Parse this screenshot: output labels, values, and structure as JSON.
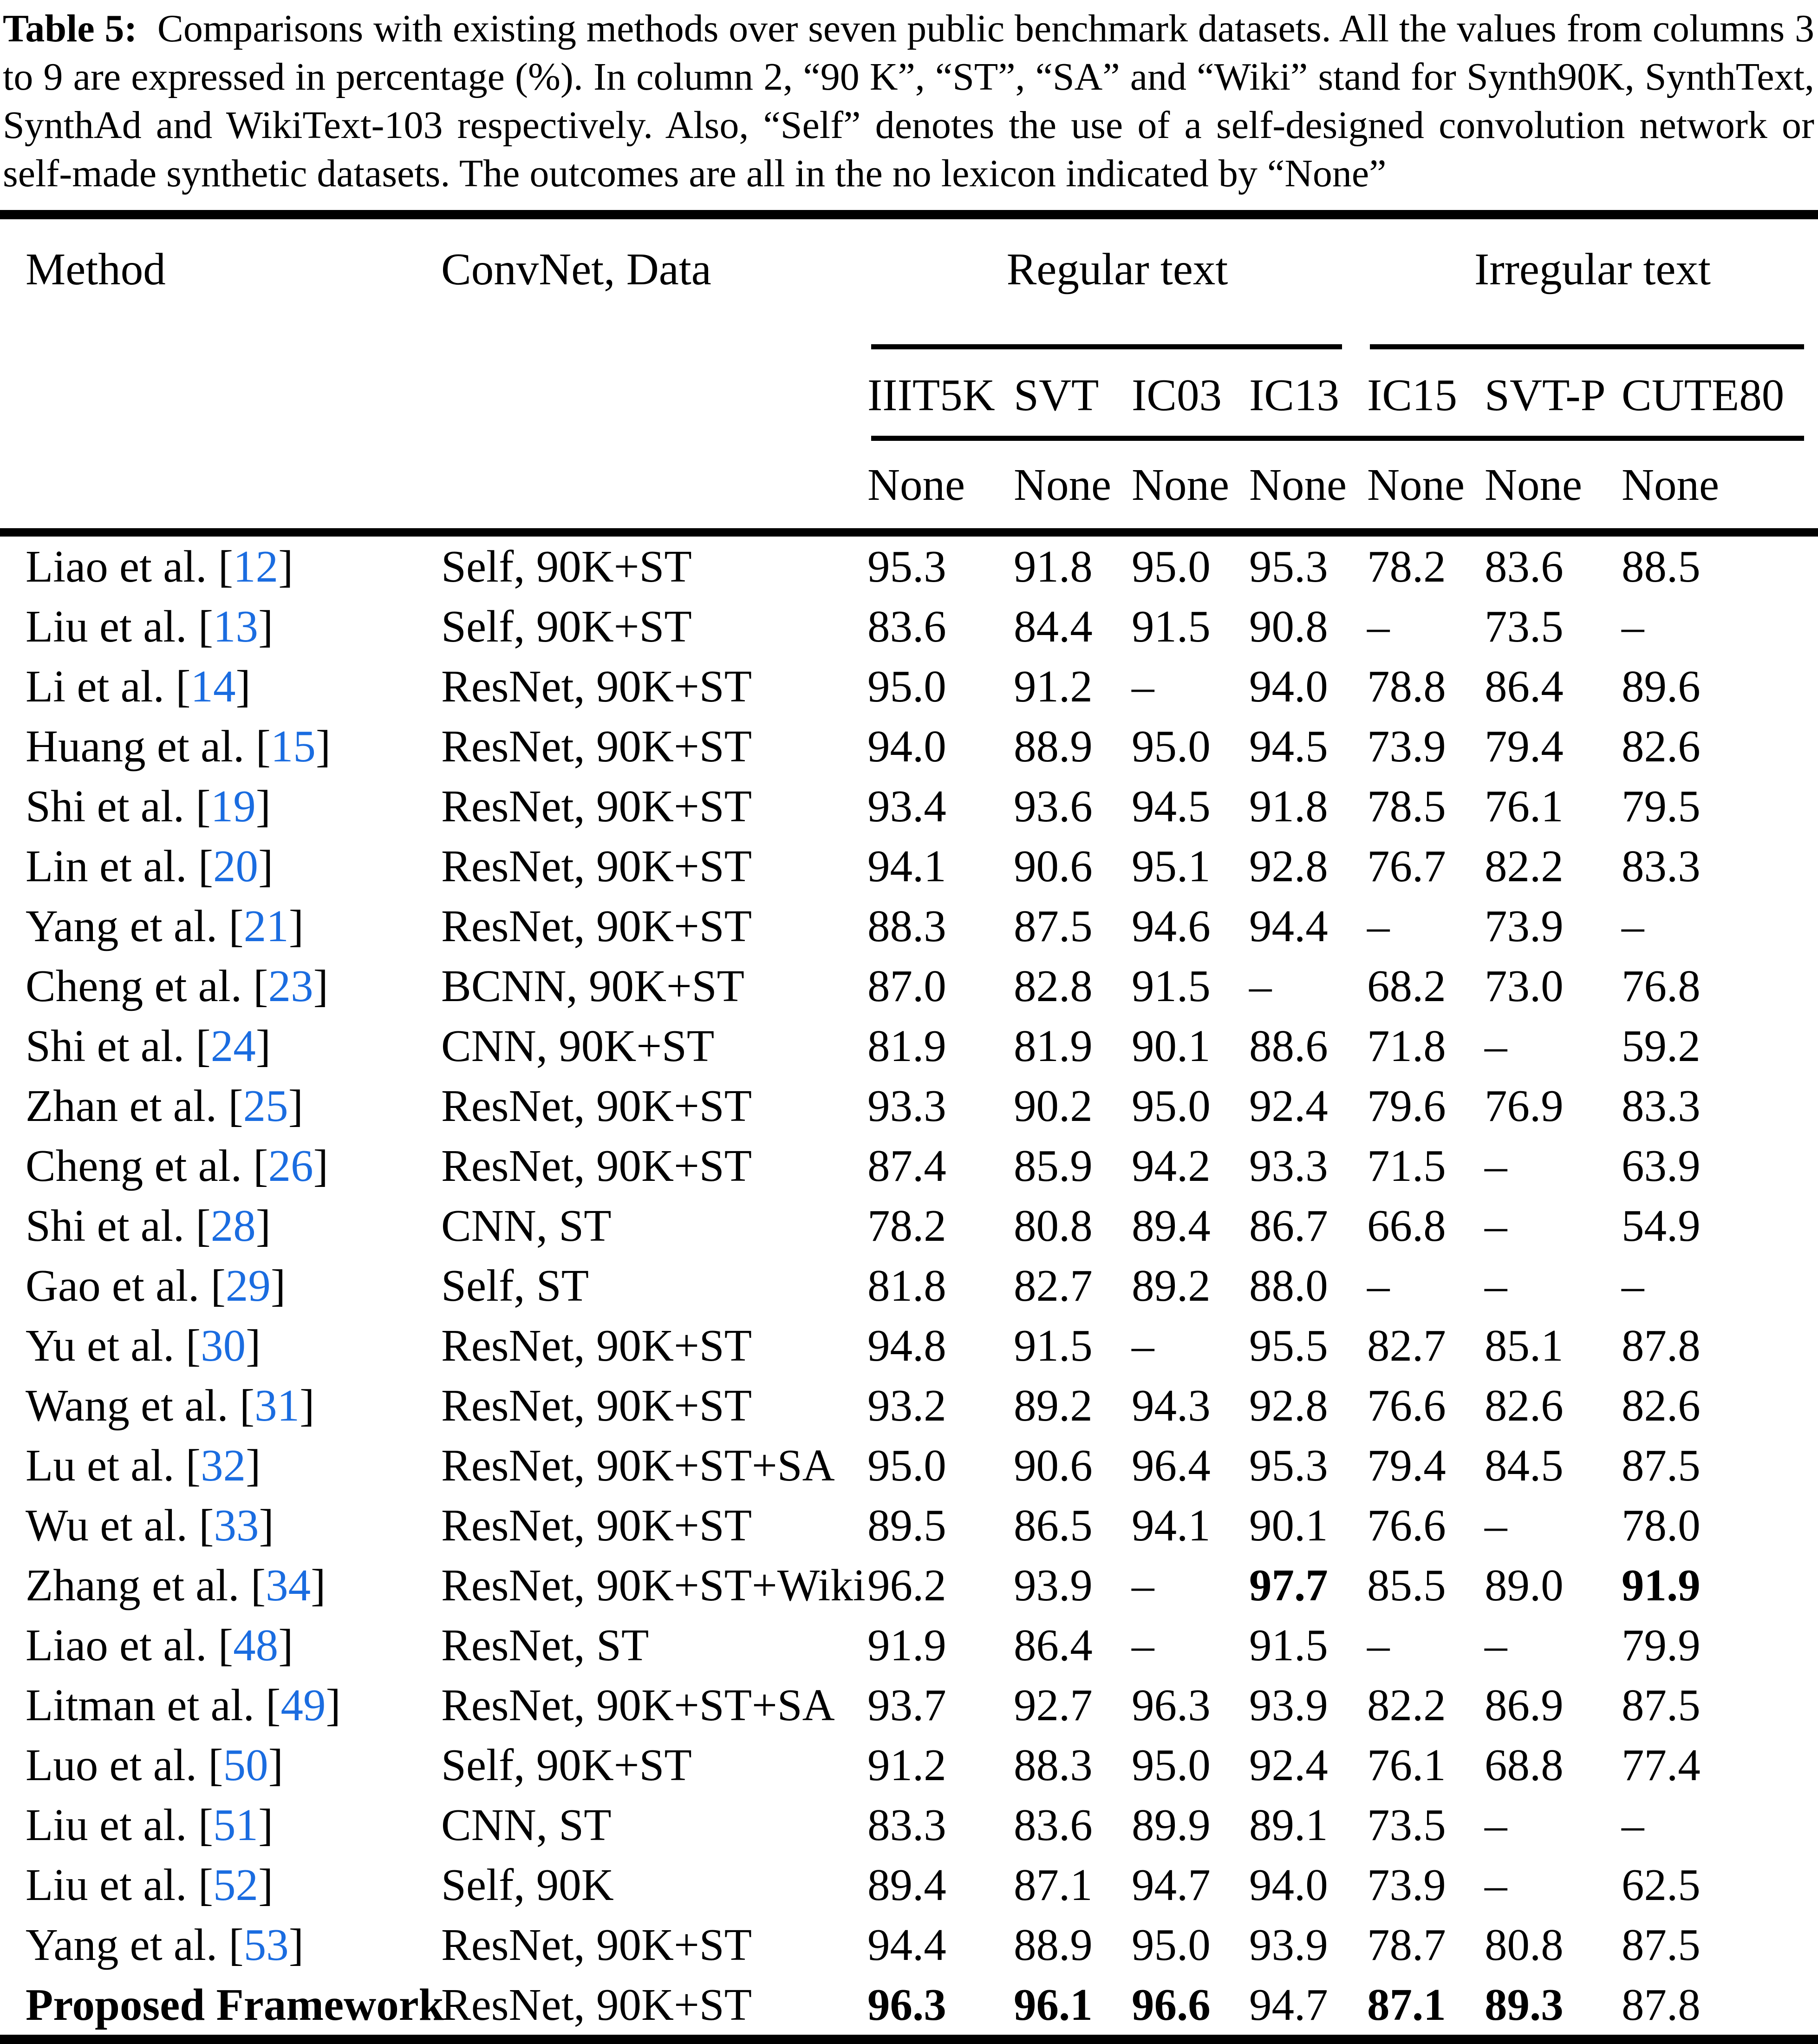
{
  "caption": {
    "label": "Table 5:",
    "text": "Comparisons with existing methods over seven public benchmark datasets. All the values from columns 3 to 9 are expressed in percentage (%). In column 2, “90 K”, “ST”, “SA” and “Wiki” stand for Synth90K, SynthText, SynthAd and WikiText-103 respectively. Also, “Self” denotes the use of a self-designed convolution network or self-made synthetic datasets. The outcomes are all in the no lexicon indicated by “None”"
  },
  "header": {
    "col1": "Method",
    "col2": "ConvNet, Data",
    "groups": [
      {
        "label": "Regular text"
      },
      {
        "label": "Irregular text"
      }
    ],
    "datasets": [
      "IIIT5K",
      "SVT",
      "IC03",
      "IC13",
      "IC15",
      "SVT-P",
      "CUTE80"
    ],
    "lexicon": [
      "None",
      "None",
      "None",
      "None",
      "None",
      "None",
      "None"
    ]
  },
  "rows": [
    {
      "method": "Liao et al.",
      "cite": "12",
      "convnet": "Self, 90K+ST",
      "values": [
        "95.3",
        "91.8",
        "95.0",
        "95.3",
        "78.2",
        "83.6",
        "88.5"
      ],
      "bold": []
    },
    {
      "method": "Liu et al.",
      "cite": "13",
      "convnet": "Self, 90K+ST",
      "values": [
        "83.6",
        "84.4",
        "91.5",
        "90.8",
        "–",
        "73.5",
        "–"
      ],
      "bold": []
    },
    {
      "method": "Li et al.",
      "cite": "14",
      "convnet": "ResNet, 90K+ST",
      "values": [
        "95.0",
        "91.2",
        "–",
        "94.0",
        "78.8",
        "86.4",
        "89.6"
      ],
      "bold": []
    },
    {
      "method": "Huang et al.",
      "cite": "15",
      "convnet": "ResNet, 90K+ST",
      "values": [
        "94.0",
        "88.9",
        "95.0",
        "94.5",
        "73.9",
        "79.4",
        "82.6"
      ],
      "bold": []
    },
    {
      "method": "Shi et al.",
      "cite": "19",
      "convnet": "ResNet, 90K+ST",
      "values": [
        "93.4",
        "93.6",
        "94.5",
        "91.8",
        "78.5",
        "76.1",
        "79.5"
      ],
      "bold": []
    },
    {
      "method": "Lin et al.",
      "cite": "20",
      "convnet": "ResNet, 90K+ST",
      "values": [
        "94.1",
        "90.6",
        "95.1",
        "92.8",
        "76.7",
        "82.2",
        "83.3"
      ],
      "bold": []
    },
    {
      "method": "Yang et al.",
      "cite": "21",
      "convnet": "ResNet, 90K+ST",
      "values": [
        "88.3",
        "87.5",
        "94.6",
        "94.4",
        "–",
        "73.9",
        "–"
      ],
      "bold": []
    },
    {
      "method": "Cheng et al.",
      "cite": "23",
      "convnet": "BCNN, 90K+ST",
      "values": [
        "87.0",
        "82.8",
        "91.5",
        "–",
        "68.2",
        "73.0",
        "76.8"
      ],
      "bold": []
    },
    {
      "method": "Shi et al.",
      "cite": "24",
      "convnet": "CNN, 90K+ST",
      "values": [
        "81.9",
        "81.9",
        "90.1",
        "88.6",
        "71.8",
        "–",
        "59.2"
      ],
      "bold": []
    },
    {
      "method": "Zhan et al.",
      "cite": "25",
      "convnet": "ResNet, 90K+ST",
      "values": [
        "93.3",
        "90.2",
        "95.0",
        "92.4",
        "79.6",
        "76.9",
        "83.3"
      ],
      "bold": []
    },
    {
      "method": "Cheng et al.",
      "cite": "26",
      "convnet": "ResNet, 90K+ST",
      "values": [
        "87.4",
        "85.9",
        "94.2",
        "93.3",
        "71.5",
        "–",
        "63.9"
      ],
      "bold": []
    },
    {
      "method": "Shi et al.",
      "cite": "28",
      "convnet": "CNN, ST",
      "values": [
        "78.2",
        "80.8",
        "89.4",
        "86.7",
        "66.8",
        "–",
        "54.9"
      ],
      "bold": []
    },
    {
      "method": "Gao et al.",
      "cite": "29",
      "convnet": "Self, ST",
      "values": [
        "81.8",
        "82.7",
        "89.2",
        "88.0",
        "–",
        "–",
        "–"
      ],
      "bold": []
    },
    {
      "method": "Yu et al.",
      "cite": "30",
      "convnet": "ResNet, 90K+ST",
      "values": [
        "94.8",
        "91.5",
        "–",
        "95.5",
        "82.7",
        "85.1",
        "87.8"
      ],
      "bold": []
    },
    {
      "method": "Wang et al.",
      "cite": "31",
      "convnet": "ResNet, 90K+ST",
      "values": [
        "93.2",
        "89.2",
        "94.3",
        "92.8",
        "76.6",
        "82.6",
        "82.6"
      ],
      "bold": []
    },
    {
      "method": "Lu et al.",
      "cite": "32",
      "convnet": "ResNet, 90K+ST+SA",
      "values": [
        "95.0",
        "90.6",
        "96.4",
        "95.3",
        "79.4",
        "84.5",
        "87.5"
      ],
      "bold": []
    },
    {
      "method": "Wu et al.",
      "cite": "33",
      "convnet": "ResNet, 90K+ST",
      "values": [
        "89.5",
        "86.5",
        "94.1",
        "90.1",
        "76.6",
        "–",
        "78.0"
      ],
      "bold": []
    },
    {
      "method": "Zhang et al.",
      "cite": "34",
      "convnet": "ResNet, 90K+ST+Wiki",
      "values": [
        "96.2",
        "93.9",
        "–",
        "97.7",
        "85.5",
        "89.0",
        "91.9"
      ],
      "bold": [
        3,
        6
      ]
    },
    {
      "method": "Liao et al.",
      "cite": "48",
      "convnet": "ResNet, ST",
      "values": [
        "91.9",
        "86.4",
        "–",
        "91.5",
        "–",
        "–",
        "79.9"
      ],
      "bold": []
    },
    {
      "method": "Litman et al.",
      "cite": "49",
      "convnet": "ResNet, 90K+ST+SA",
      "values": [
        "93.7",
        "92.7",
        "96.3",
        "93.9",
        "82.2",
        "86.9",
        "87.5"
      ],
      "bold": []
    },
    {
      "method": "Luo et al.",
      "cite": "50",
      "convnet": "Self, 90K+ST",
      "values": [
        "91.2",
        "88.3",
        "95.0",
        "92.4",
        "76.1",
        "68.8",
        "77.4"
      ],
      "bold": []
    },
    {
      "method": "Liu et al.",
      "cite": "51",
      "convnet": "CNN, ST",
      "values": [
        "83.3",
        "83.6",
        "89.9",
        "89.1",
        "73.5",
        "–",
        "–"
      ],
      "bold": []
    },
    {
      "method": "Liu et al.",
      "cite": "52",
      "convnet": "Self, 90K",
      "values": [
        "89.4",
        "87.1",
        "94.7",
        "94.0",
        "73.9",
        "–",
        "62.5"
      ],
      "bold": []
    },
    {
      "method": "Yang et al.",
      "cite": "53",
      "convnet": "ResNet, 90K+ST",
      "values": [
        "94.4",
        "88.9",
        "95.0",
        "93.9",
        "78.7",
        "80.8",
        "87.5"
      ],
      "bold": []
    },
    {
      "method": "Proposed Framework",
      "cite": null,
      "method_bold": true,
      "convnet": "ResNet, 90K+ST",
      "values": [
        "96.3",
        "96.1",
        "96.6",
        "94.7",
        "87.1",
        "89.3",
        "87.8"
      ],
      "bold": [
        0,
        1,
        2,
        4,
        5
      ]
    }
  ],
  "colors": {
    "citation_blue": "#1a6ce0",
    "text": "#000000",
    "background": "#ffffff",
    "rule": "#000000"
  }
}
